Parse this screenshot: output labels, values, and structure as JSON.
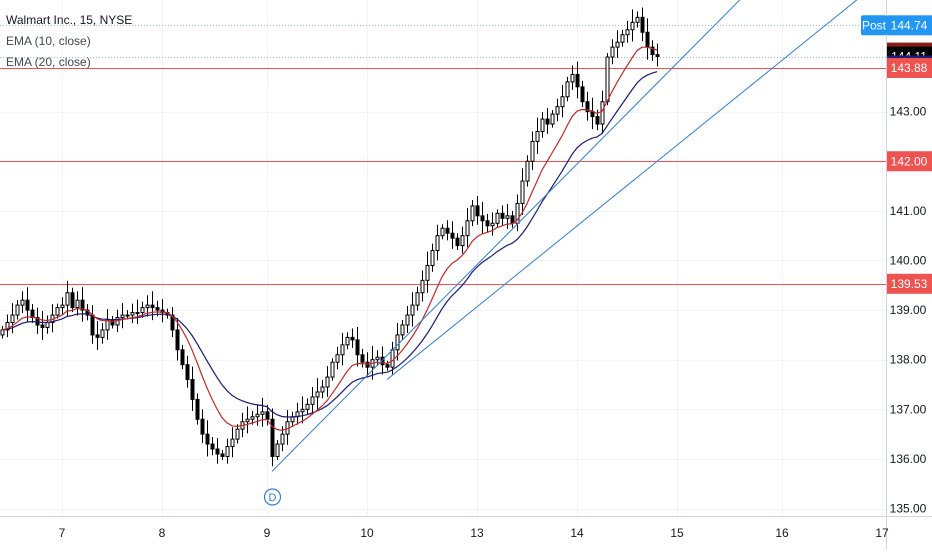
{
  "legend": {
    "symbol": "Walmart Inc., 15, NYSE",
    "ema10": "EMA (10, close)",
    "ema20": "EMA (20, close)"
  },
  "colors": {
    "up_fill": "#ffffff",
    "down_fill": "#000000",
    "candle_stroke": "#000000",
    "ema10": "#c62828",
    "ema20": "#1a1a7a",
    "hline": "#ef5350",
    "trendline": "#2f7fd8",
    "post_badge": "#2196f3",
    "last_price_badge": "#000000",
    "ema10_badge": "#8b1a1a",
    "ema20_badge": "#1a1a7a",
    "grid": "#f0f3fa",
    "axis_text": "#131722"
  },
  "chart_data": {
    "type": "candlestick",
    "title": "Walmart Inc., 15, NYSE",
    "ylim": [
      134.85,
      145.25
    ],
    "y_ticks": [
      "135.00",
      "136.00",
      "137.00",
      "138.00",
      "139.00",
      "140.00",
      "141.00",
      "142.00",
      "143.00"
    ],
    "x_ticks": [
      "7",
      "8",
      "9",
      "10",
      "13",
      "14",
      "15",
      "16",
      "17"
    ],
    "x_tick_index": [
      12,
      32,
      53,
      73,
      95,
      115,
      135,
      156,
      176
    ],
    "horizontal_lines": [
      143.88,
      142.0,
      139.53
    ],
    "price_badges": [
      {
        "label": "Post",
        "value": "144.74",
        "price": 144.74,
        "kind": "post_badge"
      },
      {
        "label": "",
        "value": "144.19",
        "price": 144.19,
        "kind": "ema10_badge"
      },
      {
        "label": "",
        "value": "144.11",
        "price": 144.11,
        "kind": "last_price_badge"
      },
      {
        "label": "",
        "value": "143.93",
        "price": 143.93,
        "kind": "ema20_badge"
      },
      {
        "label": "",
        "value": "143.88",
        "price": 143.88,
        "kind": "hline"
      },
      {
        "label": "",
        "value": "142.00",
        "price": 142.0,
        "kind": "hline"
      },
      {
        "label": "",
        "value": "139.53",
        "price": 139.53,
        "kind": "hline"
      }
    ],
    "trendlines": [
      {
        "x0": 54,
        "y0": 135.75,
        "x1": 150,
        "y1": 145.5
      },
      {
        "x0": 77,
        "y0": 137.6,
        "x1": 174,
        "y1": 145.5
      }
    ],
    "marker": {
      "label": "D",
      "index": 54
    },
    "close": [
      138.6,
      138.75,
      138.9,
      139.1,
      139.2,
      139.0,
      138.85,
      138.7,
      138.65,
      138.75,
      138.9,
      139.05,
      139.1,
      139.35,
      139.05,
      139.2,
      139.0,
      138.9,
      138.5,
      138.45,
      138.6,
      138.8,
      138.7,
      138.85,
      138.9,
      138.9,
      138.95,
      138.95,
      139.05,
      139.1,
      139.05,
      139.0,
      138.95,
      138.9,
      138.6,
      138.2,
      137.9,
      137.6,
      137.2,
      136.8,
      136.5,
      136.3,
      136.2,
      136.1,
      136.05,
      136.25,
      136.4,
      136.6,
      136.75,
      136.8,
      136.85,
      136.9,
      136.95,
      136.8,
      136.05,
      136.3,
      136.5,
      136.75,
      136.85,
      136.95,
      137.0,
      137.1,
      137.25,
      137.35,
      137.45,
      137.65,
      137.95,
      138.1,
      138.3,
      138.45,
      138.4,
      138.1,
      137.95,
      137.85,
      138.0,
      138.05,
      137.9,
      137.85,
      138.2,
      138.5,
      138.7,
      138.9,
      139.1,
      139.35,
      139.6,
      139.9,
      140.2,
      140.5,
      140.65,
      140.55,
      140.45,
      140.3,
      140.5,
      140.8,
      141.1,
      140.9,
      140.8,
      140.7,
      140.75,
      140.95,
      140.85,
      140.9,
      140.75,
      141.15,
      141.6,
      142.0,
      142.4,
      142.6,
      142.85,
      142.75,
      142.95,
      143.1,
      143.3,
      143.6,
      143.75,
      143.5,
      143.2,
      143.0,
      142.9,
      142.75,
      143.2,
      144.1,
      144.3,
      144.4,
      144.55,
      144.65,
      144.8,
      144.9,
      144.6,
      144.3,
      144.15,
      144.11
    ]
  }
}
